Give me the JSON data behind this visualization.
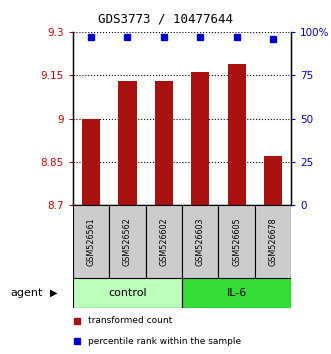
{
  "title": "GDS3773 / 10477644",
  "samples": [
    "GSM526561",
    "GSM526562",
    "GSM526602",
    "GSM526603",
    "GSM526605",
    "GSM526678"
  ],
  "bar_values": [
    9.0,
    9.13,
    9.13,
    9.16,
    9.19,
    8.87
  ],
  "percentile_values": [
    97,
    97,
    97,
    97,
    97,
    96
  ],
  "bar_color": "#aa1111",
  "dot_color": "#0000cc",
  "ylim_left": [
    8.7,
    9.3
  ],
  "ylim_right": [
    0,
    100
  ],
  "yticks_left": [
    8.7,
    8.85,
    9.0,
    9.15,
    9.3
  ],
  "ytick_labels_left": [
    "8.7",
    "8.85",
    "9",
    "9.15",
    "9.3"
  ],
  "yticks_right": [
    0,
    25,
    50,
    75,
    100
  ],
  "ytick_labels_right": [
    "0",
    "25",
    "50",
    "75",
    "100%"
  ],
  "group_boundaries": [
    {
      "start": 0,
      "end": 2,
      "color": "#bbffbb",
      "label": "control"
    },
    {
      "start": 3,
      "end": 5,
      "color": "#33dd33",
      "label": "IL-6"
    }
  ],
  "agent_label": "agent",
  "legend_items": [
    {
      "label": "transformed count",
      "color": "#aa1111"
    },
    {
      "label": "percentile rank within the sample",
      "color": "#0000cc"
    }
  ],
  "bar_width": 0.5
}
